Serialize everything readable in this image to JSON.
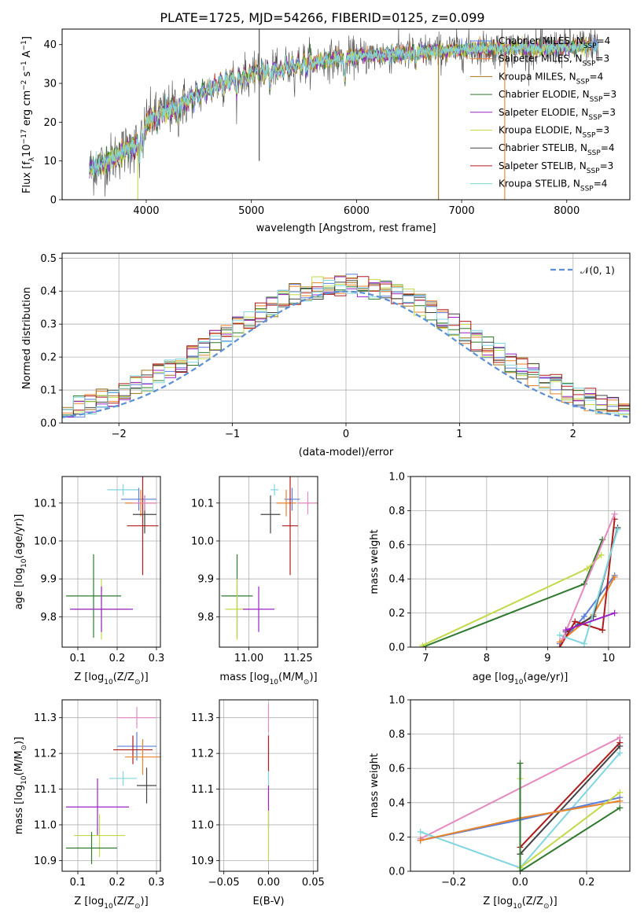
{
  "colors": {
    "Chabrier MILES": "#5b7fdc",
    "Salpeter MILES": "#e9832a",
    "Kroupa MILES": "#a7731a",
    "Chabrier ELODIE": "#2f7a2f",
    "Salpeter ELODIE": "#9a22c8",
    "Kroupa ELODIE": "#c4d94a",
    "Chabrier STELIB": "#444444",
    "Salpeter STELIB": "#b01c1c",
    "Kroupa STELIB": "#7fd6e0",
    "pink": "#e58ac0",
    "normal": "#5b8fd6"
  },
  "chart_data": [
    {
      "id": "spectrum",
      "type": "line",
      "title": "PLATE=1725, MJD=54266, FIBERID=0125, z=0.099",
      "xlabel": "wavelength [Angstrom, rest frame]",
      "ylabel": "Flux [f",
      "ylabel_sub": "λ",
      "ylabel_rest": "10",
      "ylabel_sup1": "−17",
      "ylabel_rest2": " erg cm",
      "ylabel_sup2": "−2",
      "ylabel_rest3": " s",
      "ylabel_sup3": "−1",
      "ylabel_rest4": " A",
      "ylabel_sup4": "−1",
      "ylabel_end": "]",
      "xlim": [
        3200,
        8600
      ],
      "ylim": [
        0,
        44
      ],
      "xticks": [
        4000,
        5000,
        6000,
        7000,
        8000
      ],
      "yticks": [
        0,
        10,
        20,
        30,
        40
      ],
      "legend_position": "right",
      "legend": [
        {
          "label": "Chabrier MILES, N",
          "sub": "SSP",
          "tail": "=4",
          "key": "Chabrier MILES"
        },
        {
          "label": "Salpeter MILES, N",
          "sub": "SSP",
          "tail": "=3",
          "key": "Salpeter MILES"
        },
        {
          "label": "Kroupa MILES, N",
          "sub": "SSP",
          "tail": "=4",
          "key": "Kroupa MILES"
        },
        {
          "label": "Chabrier ELODIE, N",
          "sub": "SSP",
          "tail": "=3",
          "key": "Chabrier ELODIE"
        },
        {
          "label": "Salpeter ELODIE, N",
          "sub": "SSP",
          "tail": "=3",
          "key": "Salpeter ELODIE"
        },
        {
          "label": "Kroupa ELODIE, N",
          "sub": "SSP",
          "tail": "=3",
          "key": "Kroupa ELODIE"
        },
        {
          "label": "Chabrier STELIB, N",
          "sub": "SSP",
          "tail": "=4",
          "key": "Chabrier STELIB"
        },
        {
          "label": "Salpeter STELIB, N",
          "sub": "SSP",
          "tail": "=3",
          "key": "Salpeter STELIB"
        },
        {
          "label": "Kroupa STELIB, N",
          "sub": "SSP",
          "tail": "=4",
          "key": "Kroupa STELIB"
        }
      ],
      "continuum": [
        [
          3500,
          8
        ],
        [
          3700,
          11
        ],
        [
          3800,
          13
        ],
        [
          3900,
          14
        ],
        [
          3950,
          16
        ],
        [
          4000,
          20
        ],
        [
          4100,
          22
        ],
        [
          4300,
          24
        ],
        [
          4500,
          27
        ],
        [
          4700,
          30
        ],
        [
          4900,
          31.5
        ],
        [
          5100,
          33
        ],
        [
          5300,
          34
        ],
        [
          5500,
          35
        ],
        [
          5700,
          36
        ],
        [
          6000,
          37
        ],
        [
          6300,
          37.5
        ],
        [
          6600,
          38
        ],
        [
          6900,
          38.5
        ],
        [
          7200,
          39
        ],
        [
          7500,
          39
        ],
        [
          7800,
          39
        ],
        [
          8100,
          39.5
        ],
        [
          8300,
          40
        ]
      ],
      "absorption": [
        [
          3934,
          -5
        ],
        [
          3969,
          -4
        ],
        [
          4102,
          -3
        ],
        [
          4300,
          -3
        ],
        [
          4861,
          -3
        ],
        [
          5175,
          -4
        ],
        [
          5270,
          -2
        ],
        [
          5890,
          -6
        ],
        [
          6563,
          -3
        ]
      ],
      "spikes": [
        {
          "x": 5075,
          "low": 10,
          "high": 44
        },
        {
          "x": 3920,
          "low": 0,
          "high": 14
        },
        {
          "x": 6780,
          "low": 0,
          "high": 40
        },
        {
          "x": 7410,
          "low": 0,
          "high": 40
        }
      ],
      "spike_colors": [
        "Chabrier STELIB",
        "Kroupa ELODIE",
        "Kroupa MILES",
        "Salpeter MILES"
      ]
    },
    {
      "id": "residuals",
      "type": "bar",
      "xlabel": "(data-model)/error",
      "ylabel": "Normed distribution",
      "xlim": [
        -2.5,
        2.5
      ],
      "ylim": [
        0,
        0.515
      ],
      "xticks": [
        -2,
        -1,
        0,
        1,
        2
      ],
      "xtick_labels": [
        "−2",
        "−1",
        "0",
        "1",
        "2"
      ],
      "yticks": [
        0.0,
        0.1,
        0.2,
        0.3,
        0.4,
        0.5
      ],
      "ytick_labels": [
        "0.0",
        "0.1",
        "0.2",
        "0.3",
        "0.4",
        "0.5"
      ],
      "legend_label": "𝒩(0, 1)",
      "bin_width": 0.1,
      "grid": true
    },
    {
      "id": "age-vs-Z",
      "type": "scatter",
      "xlabel": "Z [log",
      "xlabel_sub": "10",
      "xlabel_rest": "(Z/Z",
      "xlabel_sub2": "⊙",
      "xlabel_end": ")]",
      "ylabel": "age  [log",
      "ylabel_sub": "10",
      "ylabel_rest": "(age/yr)]",
      "xlim": [
        0.06,
        0.31
      ],
      "ylim": [
        9.72,
        10.17
      ],
      "xticks": [
        0.1,
        0.2,
        0.3
      ],
      "xtick_labels": [
        "0.1",
        "0.2",
        "0.3"
      ],
      "yticks": [
        9.8,
        9.9,
        10.0,
        10.1
      ],
      "ytick_labels": [
        "9.8",
        "9.9",
        "10.0",
        "10.1"
      ],
      "points": [
        {
          "c": "Kroupa STELIB",
          "x": 0.215,
          "y": 10.135,
          "xe": 0.04,
          "ye": 0.015
        },
        {
          "c": "Chabrier MILES",
          "x": 0.255,
          "y": 10.11,
          "xe": 0.045,
          "ye": 0.03
        },
        {
          "c": "Salpeter MILES",
          "x": 0.26,
          "y": 10.1,
          "xe": 0.04,
          "ye": 0.035
        },
        {
          "c": "Chabrier STELIB",
          "x": 0.27,
          "y": 10.07,
          "xe": 0.03,
          "ye": 0.05
        },
        {
          "c": "Salpeter STELIB",
          "x": 0.265,
          "y": 10.04,
          "xe": 0.04,
          "ye": 0.13
        },
        {
          "c": "pink",
          "x": 0.27,
          "y": 10.1,
          "xe": 0.03,
          "ye": 0.02
        },
        {
          "c": "Chabrier ELODIE",
          "x": 0.14,
          "y": 9.855,
          "xe": 0.07,
          "ye": 0.11
        },
        {
          "c": "Kroupa ELODIE",
          "x": 0.16,
          "y": 9.82,
          "xe": 0.07,
          "ye": 0.08
        },
        {
          "c": "Salpeter ELODIE",
          "x": 0.16,
          "y": 9.82,
          "xe": 0.08,
          "ye": 0.06
        }
      ]
    },
    {
      "id": "age-vs-mass",
      "type": "scatter",
      "xlabel": "mass [log",
      "xlabel_sub": "10",
      "xlabel_rest": "(M/M",
      "xlabel_sub2": "⊙",
      "xlabel_end": ")]",
      "xlim": [
        10.85,
        11.35
      ],
      "ylim": [
        9.72,
        10.17
      ],
      "xticks": [
        11.0,
        11.25
      ],
      "xtick_labels": [
        "11.00",
        "11.25"
      ],
      "yticks": [
        9.8,
        9.9,
        10.0,
        10.1
      ],
      "ytick_labels": [
        "9.8",
        "9.9",
        "10.0",
        "10.1"
      ],
      "points": [
        {
          "c": "Kroupa STELIB",
          "x": 11.13,
          "y": 10.135,
          "xe": 0.02,
          "ye": 0.015
        },
        {
          "c": "Chabrier MILES",
          "x": 11.22,
          "y": 10.11,
          "xe": 0.04,
          "ye": 0.03
        },
        {
          "c": "Salpeter MILES",
          "x": 11.19,
          "y": 10.1,
          "xe": 0.05,
          "ye": 0.035
        },
        {
          "c": "Chabrier STELIB",
          "x": 11.11,
          "y": 10.07,
          "xe": 0.05,
          "ye": 0.05
        },
        {
          "c": "Salpeter STELIB",
          "x": 11.21,
          "y": 10.04,
          "xe": 0.04,
          "ye": 0.13
        },
        {
          "c": "pink",
          "x": 11.3,
          "y": 10.1,
          "xe": 0.05,
          "ye": 0.03
        },
        {
          "c": "Chabrier ELODIE",
          "x": 10.94,
          "y": 9.855,
          "xe": 0.08,
          "ye": 0.11
        },
        {
          "c": "Kroupa ELODIE",
          "x": 10.94,
          "y": 9.82,
          "xe": 0.06,
          "ye": 0.08
        },
        {
          "c": "Salpeter ELODIE",
          "x": 11.05,
          "y": 9.82,
          "xe": 0.08,
          "ye": 0.06
        }
      ]
    },
    {
      "id": "weight-vs-age",
      "type": "line",
      "xlabel": "age  [log",
      "xlabel_sub": "10",
      "xlabel_rest": "(age/yr)]",
      "ylabel": "mass weight",
      "xlim": [
        6.75,
        10.35
      ],
      "ylim": [
        0,
        1.0
      ],
      "xticks": [
        7,
        8,
        9,
        10
      ],
      "xtick_labels": [
        "7",
        "8",
        "9",
        "10"
      ],
      "yticks": [
        0.0,
        0.2,
        0.4,
        0.6,
        0.8,
        1.0
      ],
      "ytick_labels": [
        "0.0",
        "0.2",
        "0.4",
        "0.6",
        "0.8",
        "1.0"
      ],
      "series": [
        {
          "c": "Chabrier ELODIE",
          "pts": [
            [
              6.95,
              0.0
            ],
            [
              9.6,
              0.37
            ],
            [
              9.9,
              0.63
            ]
          ]
        },
        {
          "c": "Kroupa ELODIE",
          "pts": [
            [
              6.95,
              0.01
            ],
            [
              9.65,
              0.46
            ],
            [
              9.88,
              0.54
            ]
          ]
        },
        {
          "c": "Chabrier MILES",
          "pts": [
            [
              9.2,
              0.02
            ],
            [
              9.6,
              0.18
            ],
            [
              10.1,
              0.42
            ]
          ]
        },
        {
          "c": "Salpeter MILES",
          "pts": [
            [
              9.2,
              0.03
            ],
            [
              9.75,
              0.19
            ],
            [
              10.1,
              0.41
            ]
          ]
        },
        {
          "c": "Chabrier STELIB",
          "pts": [
            [
              9.3,
              0.09
            ],
            [
              9.75,
              0.18
            ],
            [
              10.15,
              0.7
            ]
          ]
        },
        {
          "c": "Salpeter STELIB",
          "pts": [
            [
              9.2,
              0.0
            ],
            [
              9.45,
              0.15
            ],
            [
              9.9,
              0.1
            ],
            [
              10.1,
              0.75
            ]
          ]
        },
        {
          "c": "Kroupa STELIB",
          "pts": [
            [
              9.2,
              0.07
            ],
            [
              9.6,
              0.02
            ],
            [
              10.15,
              0.69
            ]
          ]
        },
        {
          "c": "pink",
          "pts": [
            [
              9.25,
              0.05
            ],
            [
              10.1,
              0.78
            ]
          ]
        },
        {
          "c": "Salpeter ELODIE",
          "pts": [
            [
              9.3,
              0.1
            ],
            [
              10.1,
              0.2
            ]
          ]
        }
      ]
    },
    {
      "id": "mass-vs-Z",
      "type": "scatter",
      "xlabel": "Z [log",
      "xlabel_sub": "10",
      "xlabel_rest": "(Z/Z",
      "xlabel_sub2": "⊙",
      "xlabel_end": ")]",
      "ylabel": "mass [log",
      "ylabel_sub": "10",
      "ylabel_rest": "(M/M",
      "ylabel_sub2": "⊙",
      "ylabel_end": ")]",
      "xlim": [
        0.06,
        0.31
      ],
      "ylim": [
        10.87,
        11.35
      ],
      "xticks": [
        0.1,
        0.2,
        0.3
      ],
      "xtick_labels": [
        "0.1",
        "0.2",
        "0.3"
      ],
      "yticks": [
        10.9,
        11.0,
        11.1,
        11.2,
        11.3
      ],
      "ytick_labels": [
        "10.9",
        "11.0",
        "11.1",
        "11.2",
        "11.3"
      ],
      "points": [
        {
          "c": "pink",
          "x": 0.25,
          "y": 11.3,
          "xe": 0.05,
          "ye": 0.03
        },
        {
          "c": "Chabrier MILES",
          "x": 0.25,
          "y": 11.22,
          "xe": 0.05,
          "ye": 0.04
        },
        {
          "c": "Salpeter STELIB",
          "x": 0.24,
          "y": 11.21,
          "xe": 0.05,
          "ye": 0.04
        },
        {
          "c": "Salpeter MILES",
          "x": 0.265,
          "y": 11.19,
          "xe": 0.045,
          "ye": 0.05
        },
        {
          "c": "Kroupa STELIB",
          "x": 0.215,
          "y": 11.13,
          "xe": 0.035,
          "ye": 0.02
        },
        {
          "c": "Chabrier STELIB",
          "x": 0.275,
          "y": 11.11,
          "xe": 0.025,
          "ye": 0.05
        },
        {
          "c": "Salpeter ELODIE",
          "x": 0.15,
          "y": 11.05,
          "xe": 0.08,
          "ye": 0.08
        },
        {
          "c": "Kroupa ELODIE",
          "x": 0.155,
          "y": 10.97,
          "xe": 0.065,
          "ye": 0.06
        },
        {
          "c": "Chabrier ELODIE",
          "x": 0.135,
          "y": 10.935,
          "xe": 0.065,
          "ye": 0.045
        }
      ]
    },
    {
      "id": "mass-vs-EBV",
      "type": "scatter",
      "xlabel": "E(B-V)",
      "xlim": [
        -0.055,
        0.055
      ],
      "ylim": [
        10.87,
        11.35
      ],
      "xticks": [
        -0.05,
        0.0,
        0.05
      ],
      "xtick_labels": [
        "−0.05",
        "0.00",
        "0.05"
      ],
      "yticks": [
        10.9,
        11.0,
        11.1,
        11.2,
        11.3
      ],
      "ytick_labels": [
        "10.9",
        "11.0",
        "11.1",
        "11.2",
        "11.3"
      ],
      "points": [
        {
          "c": "pink",
          "x": 0.0,
          "y": 11.3,
          "xe": 0.0,
          "ye": 0.04
        },
        {
          "c": "Salpeter STELIB",
          "x": 0.0,
          "y": 11.2,
          "xe": 0.0,
          "ye": 0.05
        },
        {
          "c": "Kroupa STELIB",
          "x": 0.0,
          "y": 11.13,
          "xe": 0.0,
          "ye": 0.02
        },
        {
          "c": "Salpeter ELODIE",
          "x": 0.0,
          "y": 11.05,
          "xe": 0.0,
          "ye": 0.06
        },
        {
          "c": "Kroupa ELODIE",
          "x": 0.0,
          "y": 10.97,
          "xe": 0.0,
          "ye": 0.07
        }
      ]
    },
    {
      "id": "weight-vs-Z",
      "type": "line",
      "xlabel": "Z [log",
      "xlabel_sub": "10",
      "xlabel_rest": "(Z/Z",
      "xlabel_sub2": "⊙",
      "xlabel_end": ")]",
      "ylabel": "mass weight",
      "xlim": [
        -0.33,
        0.33
      ],
      "ylim": [
        0,
        1.0
      ],
      "xticks": [
        -0.2,
        0.0,
        0.2
      ],
      "xtick_labels": [
        "−0.2",
        "0.0",
        "0.2"
      ],
      "yticks": [
        0.0,
        0.2,
        0.4,
        0.6,
        0.8,
        1.0
      ],
      "ytick_labels": [
        "0.0",
        "0.2",
        "0.4",
        "0.6",
        "0.8",
        "1.0"
      ],
      "series": [
        {
          "c": "pink",
          "pts": [
            [
              -0.3,
              0.19
            ],
            [
              0.3,
              0.78
            ]
          ]
        },
        {
          "c": "Salpeter STELIB",
          "pts": [
            [
              0.0,
              0.14
            ],
            [
              0.3,
              0.75
            ]
          ]
        },
        {
          "c": "Chabrier STELIB",
          "pts": [
            [
              0.0,
              0.1
            ],
            [
              0.3,
              0.73
            ]
          ]
        },
        {
          "c": "Kroupa STELIB",
          "pts": [
            [
              -0.3,
              0.23
            ],
            [
              0.0,
              0.02
            ],
            [
              0.3,
              0.69
            ]
          ]
        },
        {
          "c": "Chabrier MILES",
          "pts": [
            [
              -0.3,
              0.18
            ],
            [
              0.0,
              0.3
            ],
            [
              0.3,
              0.43
            ]
          ]
        },
        {
          "c": "Salpeter MILES",
          "pts": [
            [
              -0.3,
              0.18
            ],
            [
              0.0,
              0.31
            ],
            [
              0.3,
              0.41
            ]
          ]
        },
        {
          "c": "Kroupa ELODIE",
          "pts": [
            [
              0.0,
              0.54
            ],
            [
              0.0,
              0.02
            ],
            [
              0.3,
              0.46
            ]
          ]
        },
        {
          "c": "Chabrier ELODIE",
          "pts": [
            [
              0.0,
              0.63
            ],
            [
              0.0,
              0.0
            ],
            [
              0.3,
              0.37
            ]
          ]
        }
      ]
    }
  ]
}
